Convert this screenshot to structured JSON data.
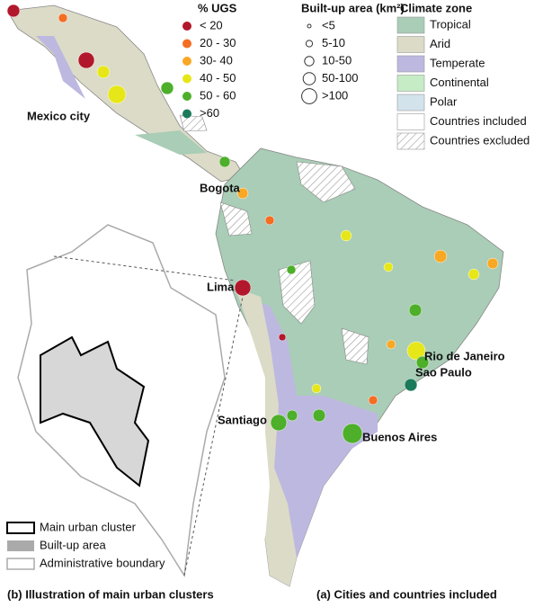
{
  "legend_ugs": {
    "title": "% UGS",
    "items": [
      {
        "label": "< 20",
        "color": "#b2182b"
      },
      {
        "label": "20 - 30",
        "color": "#f46d23"
      },
      {
        "label": "30- 40",
        "color": "#f9a825"
      },
      {
        "label": "40 - 50",
        "color": "#e6e619"
      },
      {
        "label": "50 - 60",
        "color": "#4daf2a"
      },
      {
        "label": ">60",
        "color": "#1b7a5a"
      }
    ]
  },
  "legend_area": {
    "title": "Built-up area (km²)",
    "items": [
      "<5",
      "5-10",
      "10-50",
      "50-100",
      ">100"
    ]
  },
  "legend_climate": {
    "title": "Climate zone",
    "items": [
      {
        "label": "Tropical",
        "color": "#a9cdb6"
      },
      {
        "label": "Arid",
        "color": "#dcdbc7"
      },
      {
        "label": "Temperate",
        "color": "#bdb8e0"
      },
      {
        "label": "Continental",
        "color": "#c5ecc5"
      },
      {
        "label": "Polar",
        "color": "#d3e3ec"
      },
      {
        "label": "Countries included",
        "color": "#ffffff"
      },
      {
        "label": "Countries excluded",
        "color": "url(#hatch)"
      }
    ]
  },
  "cities": [
    "Mexico city",
    "Bogota",
    "Lima",
    "Rio de Janeiro",
    "Sao Paulo",
    "Santiago",
    "Buenos Aires"
  ],
  "inset_legend": [
    "Main urban cluster",
    "Built-up area",
    "Administrative boundary"
  ],
  "captions": {
    "b": "(b) Illustration of main urban clusters",
    "a": "(a) Cities and countries included"
  }
}
